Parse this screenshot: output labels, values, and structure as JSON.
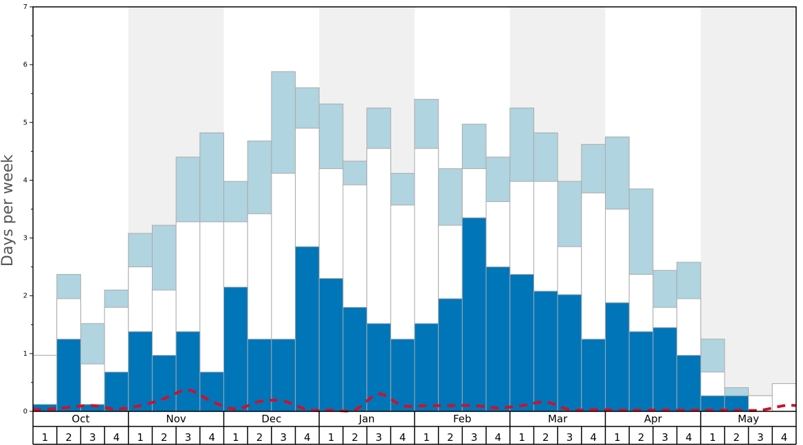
{
  "chart_data": {
    "type": "bar",
    "ylabel": "Days per week",
    "ylim": [
      0,
      7
    ],
    "yticks": [
      0,
      1,
      2,
      3,
      4,
      5,
      6,
      7
    ],
    "months": [
      "Oct",
      "Nov",
      "Dec",
      "Jan",
      "Feb",
      "Mar",
      "Apr",
      "May"
    ],
    "weeks": [
      "1",
      "2",
      "3",
      "4"
    ],
    "colors": {
      "dark": "#0075b8",
      "light": "#b0d4e0",
      "white": "#ffffff",
      "band": "#f0f0f0",
      "line": "#d0102a",
      "edge": "#aaaaaa"
    },
    "series": [
      {
        "values": [
          0.12,
          1.25,
          0.12,
          0.68,
          1.38,
          0.97,
          1.38,
          0.68,
          2.15,
          1.25,
          1.25,
          2.85,
          2.3,
          1.8,
          1.52,
          1.25,
          1.52,
          1.95,
          3.35,
          2.5,
          2.37,
          2.08,
          2.02,
          1.25,
          1.88,
          1.38,
          1.45,
          0.97,
          0.27,
          0.27,
          0,
          0
        ]
      },
      {
        "values": [
          0.97,
          1.95,
          0.82,
          1.8,
          2.5,
          2.1,
          3.28,
          3.28,
          3.28,
          3.42,
          4.12,
          4.9,
          4.2,
          3.92,
          4.55,
          3.57,
          4.55,
          3.22,
          4.2,
          3.63,
          3.98,
          3.98,
          2.85,
          3.78,
          3.5,
          2.37,
          1.8,
          1.95,
          0.68,
          0.27,
          0.27,
          0.48
        ]
      },
      {
        "values": [
          0.97,
          2.37,
          1.52,
          2.1,
          3.08,
          3.22,
          4.4,
          4.82,
          3.98,
          4.68,
          5.88,
          5.6,
          5.32,
          4.33,
          5.25,
          4.12,
          5.4,
          4.2,
          4.97,
          4.4,
          5.25,
          4.82,
          3.98,
          4.62,
          4.75,
          3.85,
          2.44,
          2.58,
          1.25,
          0.41,
          0.27,
          0.48
        ]
      },
      {
        "values": [
          0.03,
          0.07,
          0.1,
          0.04,
          0.1,
          0.22,
          0.37,
          0.17,
          0.04,
          0.17,
          0.18,
          0.03,
          0.02,
          0.03,
          0.3,
          0.1,
          0.1,
          0.1,
          0.1,
          0.06,
          0.1,
          0.16,
          0.03,
          0.03,
          0.02,
          0.02,
          0.02,
          0.02,
          0.02,
          0.02,
          0.02,
          0.1
        ]
      }
    ]
  }
}
